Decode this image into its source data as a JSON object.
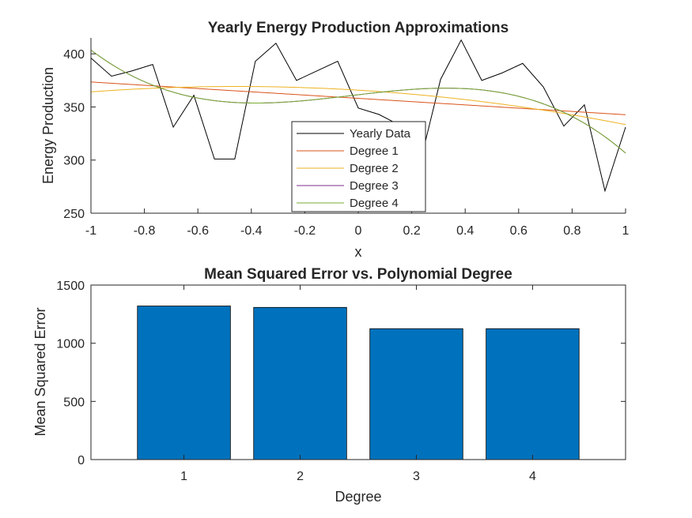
{
  "colors": {
    "yearly": "#000000",
    "degree1": "#D95319",
    "degree2": "#EDB120",
    "degree3": "#7E2F8E",
    "degree4": "#77AC30",
    "bar": "#0072BD",
    "axis": "#262626"
  },
  "chart_data": [
    {
      "type": "line",
      "title": "Yearly Energy Production Approximations",
      "xlabel": "x",
      "ylabel": "Energy Production",
      "xlim": [
        -1,
        1
      ],
      "ylim": [
        250,
        415
      ],
      "xticks": [
        -1,
        -0.8,
        -0.6,
        -0.4,
        -0.2,
        0,
        0.2,
        0.4,
        0.6,
        0.8,
        1
      ],
      "xtick_labels": [
        "-1",
        "-0.8",
        "-0.6",
        "-0.4",
        "-0.2",
        "0",
        "0.2",
        "0.4",
        "0.6",
        "0.8",
        "1"
      ],
      "yticks": [
        250,
        300,
        350,
        400
      ],
      "ytick_labels": [
        "250",
        "300",
        "350",
        "400"
      ],
      "grid": false,
      "legend_position": "lower-center",
      "series": [
        {
          "name": "Yearly Data",
          "color_key": "yearly",
          "x": [
            -1,
            -0.923,
            -0.846,
            -0.769,
            -0.692,
            -0.615,
            -0.538,
            -0.462,
            -0.385,
            -0.308,
            -0.231,
            -0.154,
            -0.077,
            0,
            0.077,
            0.154,
            0.231,
            0.308,
            0.385,
            0.462,
            0.538,
            0.615,
            0.692,
            0.769,
            0.846,
            0.923,
            1
          ],
          "y": [
            396,
            379,
            384,
            390,
            331,
            361,
            301,
            301,
            393,
            410,
            375,
            384,
            393,
            349,
            343,
            333,
            297,
            376,
            413,
            375,
            382,
            391,
            369,
            332,
            352,
            271,
            331
          ]
        },
        {
          "name": "Degree 1",
          "color_key": "degree1",
          "coefficients": [
            358.1,
            -15.4,
            0,
            0,
            0
          ]
        },
        {
          "name": "Degree 2",
          "color_key": "degree2",
          "coefficients": [
            365.8,
            -15.4,
            -17.0,
            0,
            0
          ]
        },
        {
          "name": "Degree 3",
          "color_key": "degree3",
          "coefficients": [
            361.5,
            29.4,
            -6.4,
            -77.9,
            0
          ]
        },
        {
          "name": "Degree 4",
          "color_key": "degree4",
          "coefficients": [
            361.5,
            29.4,
            -6.4,
            -77.9,
            0
          ]
        }
      ]
    },
    {
      "type": "bar",
      "title": "Mean Squared Error vs. Polynomial Degree",
      "xlabel": "Degree",
      "ylabel": "Mean Squared Error",
      "categories": [
        "1",
        "2",
        "3",
        "4"
      ],
      "values": [
        1320,
        1308,
        1125,
        1125
      ],
      "xlim": [
        0.2,
        4.8
      ],
      "ylim": [
        0,
        1500
      ],
      "yticks": [
        0,
        500,
        1000,
        1500
      ],
      "ytick_labels": [
        "0",
        "500",
        "1000",
        "1500"
      ],
      "grid": false,
      "color_key": "bar"
    }
  ]
}
